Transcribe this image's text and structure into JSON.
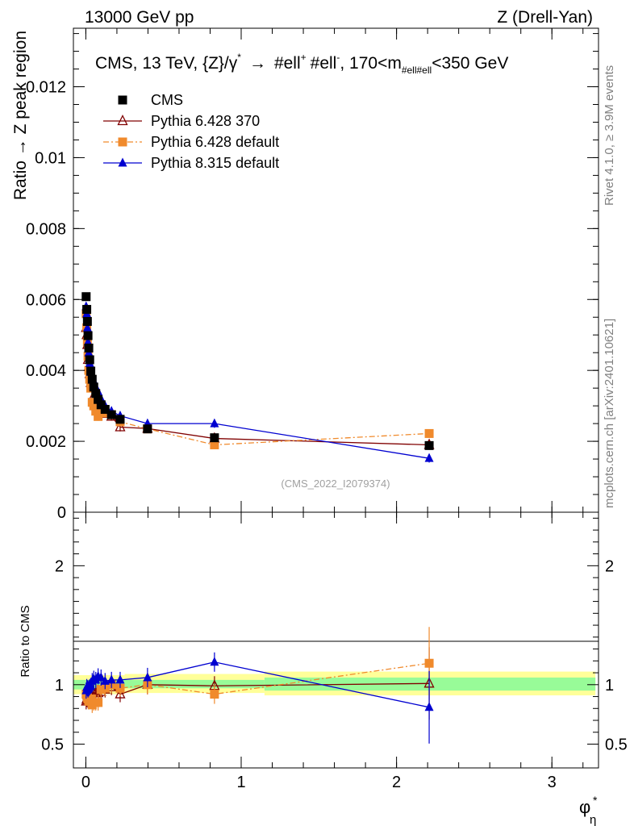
{
  "header": {
    "left": "13000 GeV pp",
    "right": "Z (Drell-Yan)"
  },
  "side_labels": {
    "rivet": "Rivet 4.1.0, ≥ 3.9M events",
    "mcplots": "mcplots.cern.ch [arXiv:2401.10621]"
  },
  "colors": {
    "cms": "#000000",
    "py6_370": "#800000",
    "py6_default": "#f08a2c",
    "py8_default": "#0000d0",
    "band_inner": "#98fb98",
    "band_outer": "#ffff99"
  },
  "chart_data": [
    {
      "type": "line",
      "title": "CMS, 13 TeV, {Z}/γ* → #ell+ #ell-, 170<m#ell#ell<350 GeV",
      "title_parts": {
        "pre": "CMS, 13 TeV, {Z}/γ",
        "star": "*",
        "arrow": "→",
        "ell_a": "#ell",
        "sup_plus": "+",
        "ell_b": "#ell",
        "sup_minus": "-",
        "mid": ", 170<m",
        "sub": "#ell#ell",
        "post": "<350 GeV"
      },
      "ylabel": "Ratio → Z peak region",
      "xlim": [
        -0.08,
        3.3
      ],
      "ylim": [
        0,
        0.01365
      ],
      "yticks": [
        0,
        0.002,
        0.004,
        0.006,
        0.008,
        0.01,
        0.012
      ],
      "ytick_labels": [
        "0",
        "0.002",
        "0.004",
        "0.006",
        "0.008",
        "0.01",
        "0.012"
      ],
      "watermark": "(CMS_2022_I2079374)",
      "legend_position": "top-left",
      "x": [
        0.002,
        0.006,
        0.01,
        0.014,
        0.019,
        0.025,
        0.032,
        0.041,
        0.051,
        0.064,
        0.079,
        0.098,
        0.124,
        0.165,
        0.221,
        0.397,
        0.828,
        2.21
      ],
      "series": [
        {
          "name": "CMS",
          "color": "#000000",
          "marker": "square",
          "values": [
            0.00608,
            0.00572,
            0.00538,
            0.00498,
            0.00463,
            0.0043,
            0.00398,
            0.00375,
            0.00353,
            0.00335,
            0.00318,
            0.00303,
            0.0029,
            0.00275,
            0.00262,
            0.00235,
            0.0021,
            0.00188
          ]
        },
        {
          "name": "Pythia 6.428 370",
          "color": "#800000",
          "marker": "open-triangle",
          "values": [
            0.0052,
            0.005,
            0.00472,
            0.0043,
            0.0041,
            0.0039,
            0.00365,
            0.0035,
            0.00328,
            0.00312,
            0.00296,
            0.00285,
            0.00278,
            0.0027,
            0.0024,
            0.00236,
            0.00208,
            0.0019
          ]
        },
        {
          "name": "Pythia 6.428 default",
          "color": "#f08a2c",
          "marker": "square",
          "values": [
            0.0056,
            0.0052,
            0.0048,
            0.0044,
            0.004,
            0.00375,
            0.0035,
            0.0031,
            0.003,
            0.00285,
            0.0027,
            0.0029,
            0.0028,
            0.00275,
            0.00255,
            0.00235,
            0.0019,
            0.00222
          ]
        },
        {
          "name": "Pythia 8.315 default",
          "color": "#0000d0",
          "marker": "triangle",
          "values": [
            0.0058,
            0.0056,
            0.0052,
            0.0048,
            0.0045,
            0.0042,
            0.00395,
            0.00385,
            0.0037,
            0.0035,
            0.0034,
            0.0032,
            0.003,
            0.00285,
            0.00272,
            0.0025,
            0.0025,
            0.00152
          ]
        }
      ]
    },
    {
      "type": "line",
      "ylabel": "Ratio to CMS",
      "xlabel_main": "φ",
      "xlabel_sup": "*",
      "xlabel_sub": "η",
      "xlim": [
        -0.08,
        3.3
      ],
      "ylim": [
        0.3,
        2.45
      ],
      "xticks": [
        0,
        1,
        2,
        3
      ],
      "xtick_labels": [
        "0",
        "1",
        "2",
        "3"
      ],
      "yticks": [
        0.5,
        1,
        2
      ],
      "ytick_labels": [
        "0.5",
        "1",
        "2"
      ],
      "bands": [
        {
          "x0": -0.08,
          "x1": 0.25,
          "inner": [
            0.96,
            1.04
          ],
          "outer": [
            0.92,
            1.08
          ]
        },
        {
          "x0": 0.25,
          "x1": 1.15,
          "inner": [
            0.97,
            1.04
          ],
          "outer": [
            0.93,
            1.09
          ]
        },
        {
          "x0": 1.15,
          "x1": 3.28,
          "inner": [
            0.95,
            1.06
          ],
          "outer": [
            0.91,
            1.11
          ]
        }
      ],
      "series": [
        {
          "name": "Pythia 6.428 370",
          "color": "#800000",
          "marker": "open-triangle",
          "values": [
            0.86,
            0.88,
            0.88,
            0.87,
            0.89,
            0.91,
            0.92,
            0.93,
            0.93,
            0.93,
            0.93,
            0.94,
            0.96,
            0.98,
            0.92,
            1.0,
            0.99,
            1.01
          ]
        },
        {
          "name": "Pythia 6.428 default",
          "color": "#f08a2c",
          "marker": "square",
          "values": [
            0.92,
            0.91,
            0.89,
            0.88,
            0.86,
            0.87,
            0.88,
            0.83,
            0.85,
            0.85,
            0.85,
            0.96,
            0.97,
            1.0,
            0.97,
            1.0,
            0.92,
            1.18
          ]
        },
        {
          "name": "Pythia 8.315 default",
          "color": "#0000d0",
          "marker": "triangle",
          "values": [
            0.95,
            0.98,
            0.97,
            0.96,
            0.97,
            0.98,
            0.99,
            1.03,
            1.05,
            1.04,
            1.07,
            1.06,
            1.03,
            1.04,
            1.04,
            1.06,
            1.19,
            0.81
          ]
        }
      ]
    }
  ]
}
